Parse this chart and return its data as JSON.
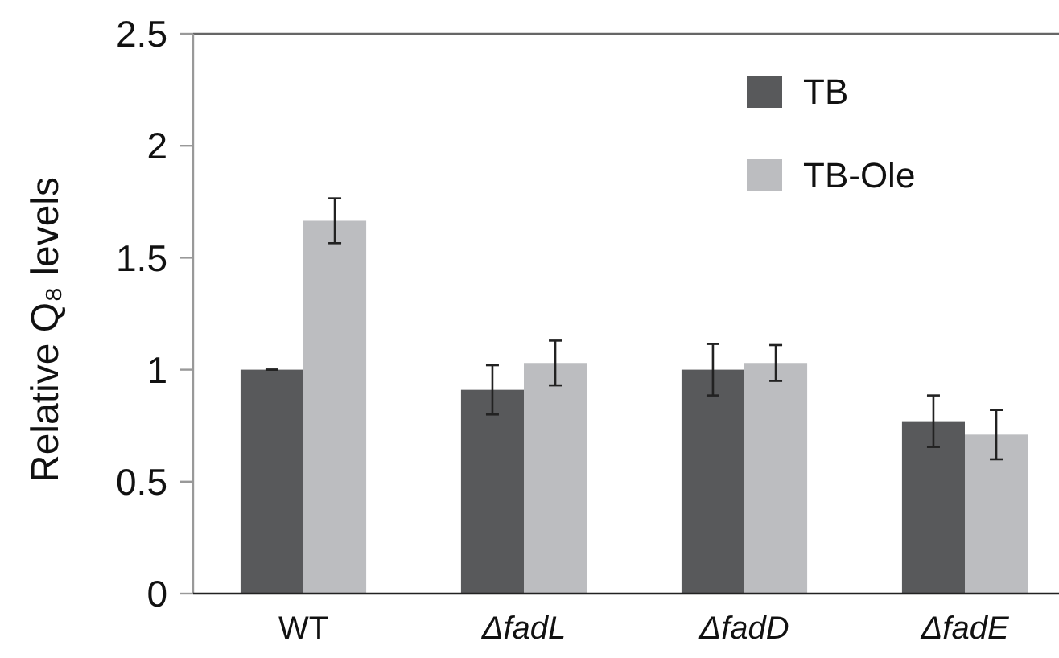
{
  "chart_data": {
    "type": "bar",
    "ylabel": "Relative Q₈ levels",
    "categories": [
      "WT",
      "ΔfadL",
      "ΔfadD",
      "ΔfadE"
    ],
    "series": [
      {
        "name": "TB",
        "color": "#58595b",
        "values": [
          1.0,
          0.91,
          1.0,
          0.77
        ],
        "errors": [
          0,
          0.11,
          0.115,
          0.115
        ]
      },
      {
        "name": "TB-Ole",
        "color": "#bcbdc0",
        "values": [
          1.665,
          1.03,
          1.03,
          0.71
        ],
        "errors": [
          0.1,
          0.1,
          0.08,
          0.11
        ]
      }
    ],
    "ylim": [
      0,
      2.5
    ],
    "yticks": [
      0,
      0.5,
      1,
      1.5,
      2,
      2.5
    ],
    "legend": "top right",
    "grid": false
  }
}
